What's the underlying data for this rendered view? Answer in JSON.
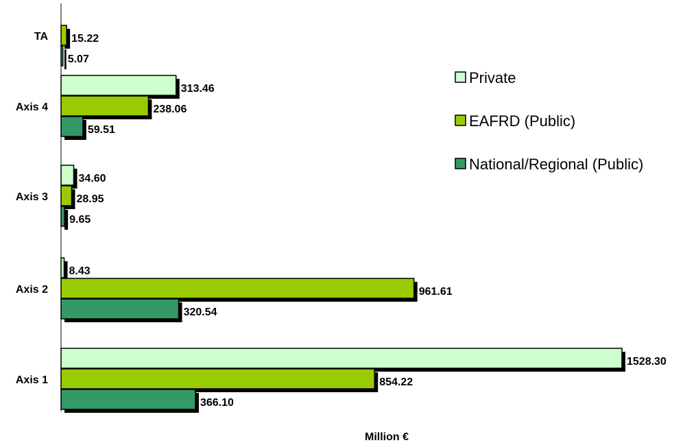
{
  "chart_data": {
    "type": "bar",
    "orientation": "horizontal",
    "categories": [
      "TA",
      "Axis 4",
      "Axis 3",
      "Axis 2",
      "Axis 1"
    ],
    "series": [
      {
        "name": "Private",
        "color": "#ccffcc",
        "values": [
          null,
          313.46,
          34.6,
          8.43,
          1528.3
        ]
      },
      {
        "name": "EAFRD (Public)",
        "color": "#99cc00",
        "values": [
          15.22,
          238.06,
          28.95,
          961.61,
          854.22
        ]
      },
      {
        "name": "National/Regional (Public)",
        "color": "#339966",
        "values": [
          5.07,
          59.51,
          9.65,
          320.54,
          366.1
        ]
      }
    ],
    "value_labels": [
      [
        null,
        "313.46",
        "34.60",
        "8.43",
        "1528.30"
      ],
      [
        "15.22",
        "238.06",
        "28.95",
        "961.61",
        "854.22"
      ],
      [
        "5.07",
        "59.51",
        "9.65",
        "320.54",
        "366.10"
      ]
    ],
    "xlabel": "Million €",
    "ylabel": "",
    "xlim": [
      0,
      1528.3
    ],
    "grid": false,
    "legend_position": "top-right"
  }
}
